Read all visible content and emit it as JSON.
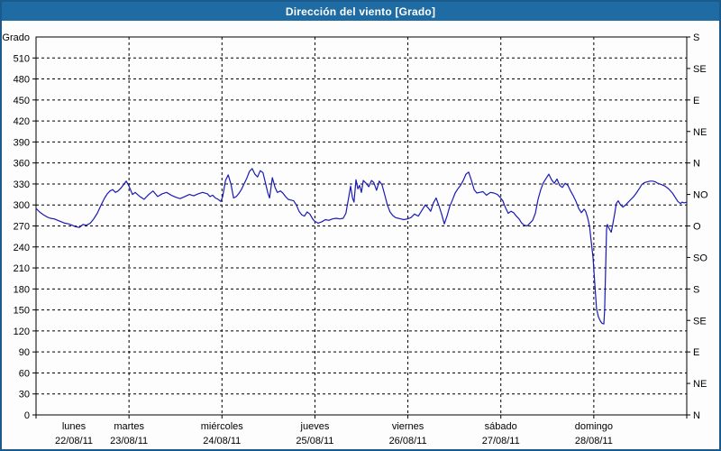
{
  "window": {
    "title": "Dirección del viento [Grado]"
  },
  "colors": {
    "title_bar": "#1e6ca3",
    "window_border": "#1b5a8d",
    "line": "#1a1ab4",
    "grid": "#000000",
    "frame": "#000000",
    "background": "#fdfdfd",
    "title_text": "#ffffff",
    "axis_text": "#000000"
  },
  "chart_data": {
    "type": "line",
    "title": "Dirección del viento [Grado]",
    "ylabel": "Grado",
    "xlabel": "",
    "ylim": [
      0,
      540
    ],
    "grid": true,
    "x_unit": "hours",
    "x_range_hours": [
      0,
      168
    ],
    "left_axis": {
      "label": "Grado",
      "ticks": [
        510,
        480,
        450,
        420,
        390,
        360,
        330,
        300,
        270,
        240,
        210,
        180,
        150,
        120,
        90,
        60,
        30,
        0
      ]
    },
    "right_axis": {
      "ticks": [
        {
          "deg": 540,
          "label": "S"
        },
        {
          "deg": 495,
          "label": "SE"
        },
        {
          "deg": 450,
          "label": "E"
        },
        {
          "deg": 405,
          "label": "NE"
        },
        {
          "deg": 360,
          "label": "N"
        },
        {
          "deg": 315,
          "label": "NO"
        },
        {
          "deg": 270,
          "label": "O"
        },
        {
          "deg": 225,
          "label": "SO"
        },
        {
          "deg": 180,
          "label": "S"
        },
        {
          "deg": 135,
          "label": "SE"
        },
        {
          "deg": 90,
          "label": "E"
        },
        {
          "deg": 45,
          "label": "NE"
        },
        {
          "deg": 0,
          "label": "N"
        }
      ]
    },
    "x_axis": {
      "hours_per_day": 24,
      "days": [
        {
          "name": "lunes",
          "date": "22/08/11"
        },
        {
          "name": "martes",
          "date": "23/08/11"
        },
        {
          "name": "miércoles",
          "date": "24/08/11"
        },
        {
          "name": "jueves",
          "date": "25/08/11"
        },
        {
          "name": "viernes",
          "date": "26/08/11"
        },
        {
          "name": "sábado",
          "date": "27/08/11"
        },
        {
          "name": "domingo",
          "date": "28/08/11"
        }
      ]
    },
    "series": [
      {
        "name": "Dirección del viento",
        "points": [
          [
            0,
            295
          ],
          [
            0.9,
            290
          ],
          [
            1.9,
            286
          ],
          [
            2.8,
            283
          ],
          [
            3.7,
            281
          ],
          [
            4.7,
            280
          ],
          [
            5.6,
            278
          ],
          [
            6.5,
            276
          ],
          [
            7.4,
            274
          ],
          [
            8.4,
            273
          ],
          [
            9.3,
            271
          ],
          [
            10.2,
            269
          ],
          [
            11.2,
            268
          ],
          [
            12.1,
            272
          ],
          [
            13,
            271
          ],
          [
            14,
            274
          ],
          [
            14.9,
            280
          ],
          [
            15.8,
            288
          ],
          [
            16.8,
            300
          ],
          [
            17.7,
            310
          ],
          [
            18.4,
            316
          ],
          [
            19.1,
            320
          ],
          [
            19.8,
            322
          ],
          [
            20.5,
            318
          ],
          [
            21.2,
            320
          ],
          [
            21.9,
            324
          ],
          [
            22.6,
            329
          ],
          [
            23.3,
            334
          ],
          [
            24,
            327
          ],
          [
            24.9,
            315
          ],
          [
            25.6,
            318
          ],
          [
            26.8,
            312
          ],
          [
            27.9,
            308
          ],
          [
            29.1,
            315
          ],
          [
            30.2,
            320
          ],
          [
            31.4,
            312
          ],
          [
            32.6,
            316
          ],
          [
            33.7,
            318
          ],
          [
            34.9,
            314
          ],
          [
            36.1,
            311
          ],
          [
            37.2,
            309
          ],
          [
            38.4,
            312
          ],
          [
            39.6,
            315
          ],
          [
            40.7,
            313
          ],
          [
            41.9,
            316
          ],
          [
            43,
            318
          ],
          [
            44.2,
            316
          ],
          [
            44.9,
            312
          ],
          [
            45.6,
            314
          ],
          [
            46.3,
            310
          ],
          [
            47,
            308
          ],
          [
            47.7,
            305
          ],
          [
            48.2,
            312
          ],
          [
            48.9,
            335
          ],
          [
            49.6,
            343
          ],
          [
            50.3,
            330
          ],
          [
            51,
            310
          ],
          [
            51.7,
            312
          ],
          [
            52.3,
            316
          ],
          [
            53,
            322
          ],
          [
            53.7,
            330
          ],
          [
            54.4,
            338
          ],
          [
            55.1,
            348
          ],
          [
            55.8,
            352
          ],
          [
            56.5,
            344
          ],
          [
            57.2,
            340
          ],
          [
            57.9,
            349
          ],
          [
            58.6,
            346
          ],
          [
            59.3,
            330
          ],
          [
            59.8,
            318
          ],
          [
            60.3,
            310
          ],
          [
            61,
            339
          ],
          [
            61.7,
            325
          ],
          [
            62.3,
            318
          ],
          [
            63.1,
            320
          ],
          [
            63.7,
            317
          ],
          [
            64.4,
            312
          ],
          [
            65.1,
            308
          ],
          [
            65.8,
            307
          ],
          [
            66.5,
            306
          ],
          [
            67.2,
            300
          ],
          [
            67.9,
            291
          ],
          [
            68.6,
            286
          ],
          [
            69.3,
            284
          ],
          [
            70,
            290
          ],
          [
            70.7,
            287
          ],
          [
            71.4,
            280
          ],
          [
            71.9,
            277
          ],
          [
            72.8,
            274
          ],
          [
            73.8,
            276
          ],
          [
            74.7,
            279
          ],
          [
            75.6,
            278
          ],
          [
            76.5,
            280
          ],
          [
            77.5,
            281
          ],
          [
            78.4,
            280
          ],
          [
            79.3,
            281
          ],
          [
            80,
            288
          ],
          [
            80.7,
            310
          ],
          [
            81.2,
            327
          ],
          [
            81.7,
            310
          ],
          [
            82.1,
            304
          ],
          [
            82.6,
            336
          ],
          [
            83.1,
            323
          ],
          [
            83.5,
            328
          ],
          [
            84,
            318
          ],
          [
            84.5,
            335
          ],
          [
            85.2,
            331
          ],
          [
            85.9,
            326
          ],
          [
            86.6,
            335
          ],
          [
            87.2,
            332
          ],
          [
            87.9,
            321
          ],
          [
            88.6,
            334
          ],
          [
            89.3,
            329
          ],
          [
            90,
            315
          ],
          [
            90.7,
            300
          ],
          [
            91.4,
            290
          ],
          [
            92.1,
            285
          ],
          [
            92.8,
            282
          ],
          [
            93.5,
            281
          ],
          [
            94.2,
            280
          ],
          [
            94.9,
            279
          ],
          [
            95.9,
            280
          ],
          [
            96.8,
            282
          ],
          [
            97.7,
            287
          ],
          [
            98.7,
            284
          ],
          [
            99.6,
            292
          ],
          [
            100.5,
            300
          ],
          [
            101.2,
            296
          ],
          [
            101.9,
            291
          ],
          [
            102.6,
            303
          ],
          [
            103.3,
            310
          ],
          [
            104,
            299
          ],
          [
            104.7,
            287
          ],
          [
            105.4,
            273
          ],
          [
            106.1,
            284
          ],
          [
            106.8,
            298
          ],
          [
            107.5,
            307
          ],
          [
            108.2,
            317
          ],
          [
            108.9,
            323
          ],
          [
            109.6,
            328
          ],
          [
            110.3,
            335
          ],
          [
            111,
            344
          ],
          [
            111.7,
            347
          ],
          [
            112.4,
            335
          ],
          [
            113.1,
            322
          ],
          [
            113.8,
            317
          ],
          [
            114.5,
            318
          ],
          [
            115.4,
            319
          ],
          [
            116.3,
            314
          ],
          [
            117.3,
            318
          ],
          [
            118.2,
            317
          ],
          [
            119.1,
            315
          ],
          [
            119.8,
            311
          ],
          [
            120.5,
            306
          ],
          [
            121.2,
            296
          ],
          [
            121.9,
            288
          ],
          [
            122.6,
            291
          ],
          [
            123.3,
            289
          ],
          [
            124,
            284
          ],
          [
            124.7,
            280
          ],
          [
            125.4,
            274
          ],
          [
            126.1,
            271
          ],
          [
            126.8,
            270
          ],
          [
            127.5,
            274
          ],
          [
            128.2,
            278
          ],
          [
            128.9,
            288
          ],
          [
            129.6,
            308
          ],
          [
            130.3,
            322
          ],
          [
            131,
            332
          ],
          [
            131.7,
            338
          ],
          [
            132.4,
            344
          ],
          [
            133.1,
            336
          ],
          [
            133.8,
            331
          ],
          [
            134.5,
            337
          ],
          [
            135.2,
            328
          ],
          [
            135.9,
            325
          ],
          [
            136.6,
            331
          ],
          [
            137.3,
            328
          ],
          [
            138,
            320
          ],
          [
            138.7,
            313
          ],
          [
            139.4,
            305
          ],
          [
            140.1,
            295
          ],
          [
            140.8,
            289
          ],
          [
            141.5,
            294
          ],
          [
            141.9,
            291
          ],
          [
            142.4,
            282
          ],
          [
            142.9,
            270
          ],
          [
            143.3,
            250
          ],
          [
            143.8,
            225
          ],
          [
            144.3,
            185
          ],
          [
            144.7,
            152
          ],
          [
            145.2,
            140
          ],
          [
            145.7,
            134
          ],
          [
            146.1,
            131
          ],
          [
            146.6,
            130
          ],
          [
            146.8,
            150
          ],
          [
            147.1,
            220
          ],
          [
            147.3,
            265
          ],
          [
            147.5,
            272
          ],
          [
            148,
            266
          ],
          [
            148.5,
            261
          ],
          [
            148.9,
            272
          ],
          [
            149.4,
            288
          ],
          [
            149.8,
            302
          ],
          [
            150.3,
            306
          ],
          [
            150.8,
            301
          ],
          [
            151.5,
            297
          ],
          [
            152.2,
            300
          ],
          [
            152.9,
            304
          ],
          [
            153.6,
            308
          ],
          [
            154.3,
            312
          ],
          [
            155,
            317
          ],
          [
            155.7,
            323
          ],
          [
            156.4,
            329
          ],
          [
            157.1,
            332
          ],
          [
            157.8,
            333
          ],
          [
            158.5,
            334
          ],
          [
            159.2,
            334
          ],
          [
            159.9,
            333
          ],
          [
            160.5,
            331
          ],
          [
            161.5,
            329
          ],
          [
            162.4,
            327
          ],
          [
            163.3,
            323
          ],
          [
            164.3,
            317
          ],
          [
            165,
            311
          ],
          [
            165.7,
            305
          ],
          [
            166.4,
            302
          ],
          [
            166.8,
            304
          ],
          [
            167.3,
            303
          ],
          [
            168,
            304
          ]
        ]
      }
    ]
  }
}
